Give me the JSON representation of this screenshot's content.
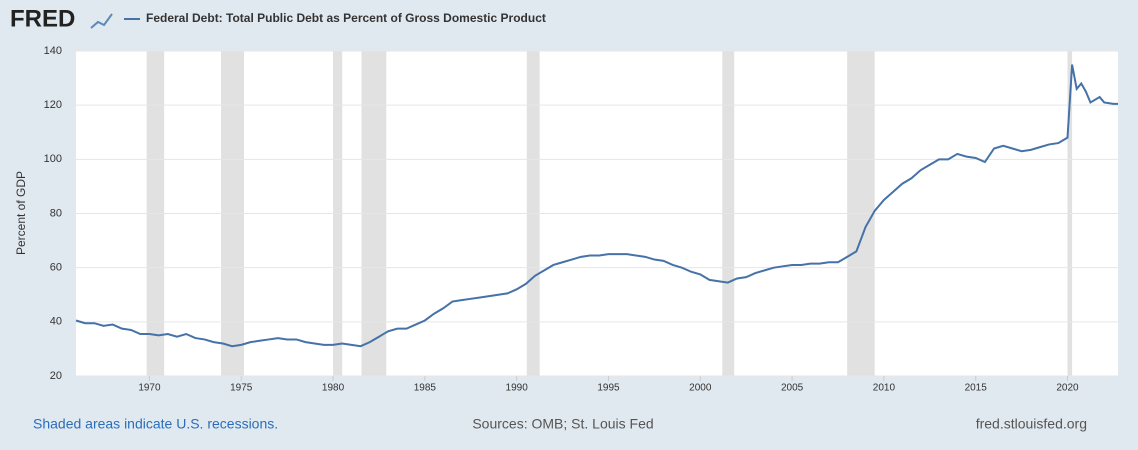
{
  "header": {
    "logo": "FRED"
  },
  "chart_data": {
    "type": "line",
    "y_label": "Percent of GDP",
    "x": [
      1966,
      1966.5,
      1967,
      1967.5,
      1968,
      1968.5,
      1969,
      1969.5,
      1970,
      1970.5,
      1971,
      1971.5,
      1972,
      1972.5,
      1973,
      1973.5,
      1974,
      1974.5,
      1975,
      1975.5,
      1976,
      1976.5,
      1977,
      1977.5,
      1978,
      1978.5,
      1979,
      1979.5,
      1980,
      1980.5,
      1981,
      1981.5,
      1982,
      1982.5,
      1983,
      1983.5,
      1984,
      1984.5,
      1985,
      1985.5,
      1986,
      1986.5,
      1987,
      1987.5,
      1988,
      1988.5,
      1989,
      1989.5,
      1990,
      1990.5,
      1991,
      1991.5,
      1992,
      1992.5,
      1993,
      1993.5,
      1994,
      1994.5,
      1995,
      1995.5,
      1996,
      1996.5,
      1997,
      1997.5,
      1998,
      1998.5,
      1999,
      1999.5,
      2000,
      2000.5,
      2001,
      2001.5,
      2002,
      2002.5,
      2003,
      2003.5,
      2004,
      2004.5,
      2005,
      2005.5,
      2006,
      2006.5,
      2007,
      2007.5,
      2008,
      2008.5,
      2009,
      2009.5,
      2010,
      2010.5,
      2011,
      2011.5,
      2012,
      2012.5,
      2013,
      2013.5,
      2014,
      2014.5,
      2015,
      2015.5,
      2016,
      2016.5,
      2017,
      2017.5,
      2018,
      2018.5,
      2019,
      2019.5,
      2020,
      2020.25,
      2020.5,
      2020.75,
      2021,
      2021.25,
      2021.75,
      2022,
      2022.5,
      2022.75
    ],
    "series": [
      {
        "name": "Federal Debt: Total Public Debt as Percent of Gross Domestic Product",
        "color": "#4572a7",
        "values": [
          40.5,
          39.5,
          39.5,
          38.5,
          39,
          37.5,
          37,
          35.5,
          35.5,
          35,
          35.5,
          34.5,
          35.5,
          34,
          33.5,
          32.5,
          32,
          31,
          31.5,
          32.5,
          33,
          33.5,
          34,
          33.5,
          33.5,
          32.5,
          32,
          31.5,
          31.5,
          32,
          31.5,
          31,
          32.5,
          34.5,
          36.5,
          37.5,
          37.5,
          39,
          40.5,
          43,
          45,
          47.5,
          48,
          48.5,
          49,
          49.5,
          50,
          50.5,
          52,
          54,
          57,
          59,
          61,
          62,
          63,
          64,
          64.5,
          64.5,
          65,
          65,
          65,
          64.5,
          64,
          63,
          62.5,
          61,
          60,
          58.5,
          57.5,
          55.5,
          55,
          54.5,
          56,
          56.5,
          58,
          59,
          60,
          60.5,
          61,
          61,
          61.5,
          61.5,
          62,
          62,
          64,
          66,
          75,
          81,
          85,
          88,
          91,
          93,
          96,
          98,
          100,
          100,
          102,
          101,
          100.5,
          99,
          104,
          105,
          104,
          103,
          103.5,
          104.5,
          105.5,
          106,
          108,
          135,
          126,
          128,
          125,
          121,
          123,
          121,
          120.5,
          120.5
        ]
      }
    ],
    "recessions": [
      [
        1969.85,
        1970.8
      ],
      [
        1973.9,
        1975.15
      ],
      [
        1980,
        1980.5
      ],
      [
        1981.55,
        1982.9
      ],
      [
        1990.55,
        1991.25
      ],
      [
        2001.2,
        2001.85
      ],
      [
        2008,
        2009.5
      ],
      [
        2020,
        2020.25
      ]
    ],
    "xlim": [
      1966,
      2022.75
    ],
    "xticks": [
      1970,
      1975,
      1980,
      1985,
      1990,
      1995,
      2000,
      2005,
      2010,
      2015,
      2020
    ],
    "ylim": [
      20,
      140
    ],
    "yticks": [
      20,
      40,
      60,
      80,
      100,
      120,
      140
    ],
    "grid": true
  },
  "footer": {
    "note": "Shaded areas indicate U.S. recessions.",
    "sources": "Sources: OMB; St. Louis Fed",
    "site": "fred.stlouisfed.org"
  }
}
